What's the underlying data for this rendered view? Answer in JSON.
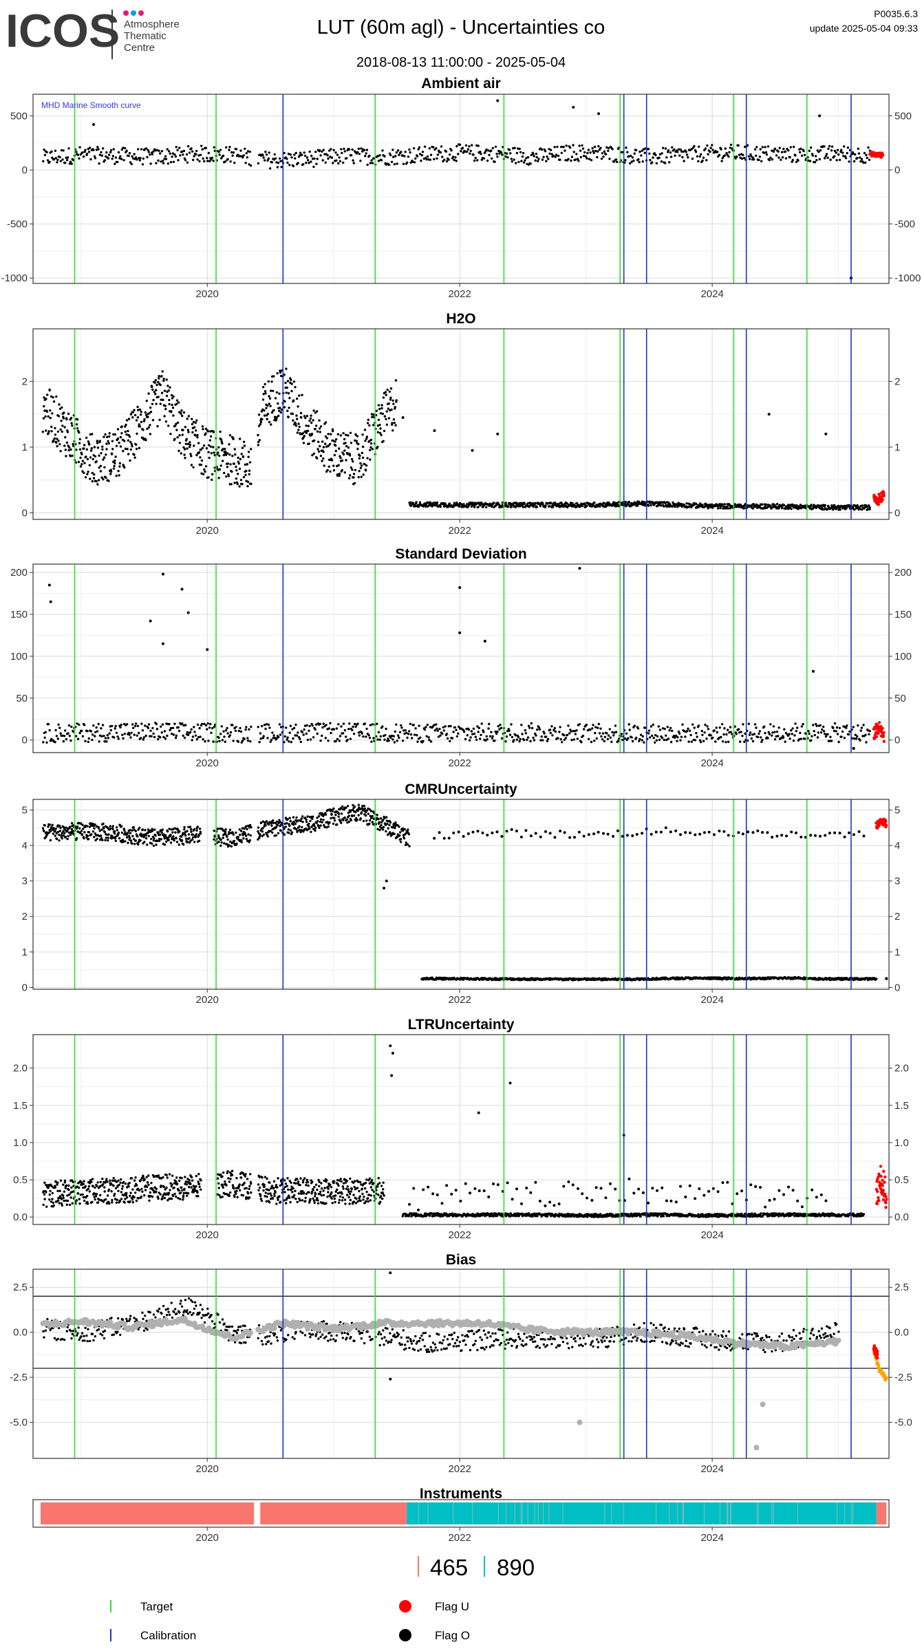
{
  "header": {
    "logo_text": "ICOS",
    "logo_org_line1": "Atmosphere",
    "logo_org_line2": "Thematic",
    "logo_org_line3": "Centre",
    "title": "LUT  (60m agl) - Uncertainties co",
    "date_range": "2018-08-13 11:00:00 - 2025-05-04",
    "code": "P0035.6.3",
    "update": "update  2025-05-04 09:33"
  },
  "colors": {
    "target_line": "#33dd33",
    "calibration_line": "#1a33cc",
    "flag_U": "#ff0000",
    "flag_O": "#000000",
    "smooth_curve": "#b0b0b0",
    "bias_extra": "#ffa500",
    "instrument_465": "#f8766d",
    "instrument_890": "#00bfc4",
    "annotation": "#3333ff"
  },
  "chart_data": [
    {
      "panel": "ambient_air",
      "type": "scatter",
      "title": "Ambient air",
      "annotation": "MHD Marine Smooth curve",
      "xlim": [
        2018.62,
        2025.4
      ],
      "ylim": [
        -1050,
        700
      ],
      "yticks": [
        "500",
        "0",
        "-500",
        "-1000"
      ],
      "ytick_values": [
        500,
        0,
        -500,
        -1000
      ],
      "xticks": [
        "2020",
        "2022",
        "2024"
      ],
      "xtick_values": [
        2020,
        2022,
        2024
      ],
      "target_lines": [
        2018.95,
        2020.07,
        2021.33,
        2022.35,
        2023.27,
        2024.17,
        2024.75
      ],
      "calibration_lines": [
        2020.6,
        2023.3,
        2023.48,
        2024.27,
        2025.1
      ],
      "gaps": [
        [
          2020.35,
          2020.4
        ]
      ],
      "series": [
        {
          "x": [
            2018.7,
            2019.0,
            2019.3,
            2019.6,
            2019.9,
            2020.2,
            2020.5,
            2020.8,
            2021.1,
            2021.4,
            2021.7,
            2022.0,
            2022.3,
            2022.6,
            2022.9,
            2023.2,
            2023.5,
            2023.8,
            2024.1,
            2024.4,
            2024.7,
            2025.0,
            2025.25
          ],
          "y": [
            110,
            140,
            130,
            120,
            150,
            140,
            90,
            100,
            130,
            120,
            140,
            160,
            150,
            120,
            160,
            150,
            120,
            140,
            160,
            150,
            140,
            150,
            140
          ],
          "spread": 110
        },
        {
          "x": [
            2025.25,
            2025.3,
            2025.35
          ],
          "y": [
            150,
            140,
            135
          ],
          "spread": 30,
          "flag": "U"
        }
      ],
      "spikes": [
        [
          2022.3,
          640
        ],
        [
          2022.9,
          580
        ],
        [
          2023.1,
          520
        ],
        [
          2024.85,
          500
        ],
        [
          2019.1,
          420
        ]
      ],
      "outliers": [
        [
          2025.1,
          -1000
        ]
      ]
    },
    {
      "panel": "h2o",
      "type": "scatter",
      "title": "H2O",
      "xlim": [
        2018.62,
        2025.4
      ],
      "ylim": [
        -0.1,
        2.8
      ],
      "yticks": [
        "2",
        "1",
        "0"
      ],
      "ytick_values": [
        2,
        1,
        0
      ],
      "xticks": [
        "2020",
        "2022",
        "2024"
      ],
      "xtick_values": [
        2020,
        2022,
        2024
      ],
      "target_lines": [
        2018.95,
        2020.07,
        2021.33,
        2022.35,
        2023.27,
        2024.17,
        2024.75
      ],
      "calibration_lines": [
        2020.6,
        2023.3,
        2023.48,
        2024.27,
        2025.1
      ],
      "gaps": [
        [
          2020.35,
          2020.4
        ]
      ],
      "series": [
        {
          "x": [
            2018.7,
            2018.9,
            2019.1,
            2019.3,
            2019.5,
            2019.65,
            2019.8,
            2020.0,
            2020.2,
            2020.35,
            2020.45,
            2020.6,
            2020.8,
            2021.0,
            2021.2,
            2021.35,
            2021.5
          ],
          "y": [
            1.6,
            1.2,
            0.8,
            0.9,
            1.4,
            1.8,
            1.2,
            0.9,
            0.8,
            0.7,
            1.6,
            1.9,
            1.3,
            0.9,
            0.8,
            1.3,
            1.7
          ],
          "spread": 0.55
        },
        {
          "x": [
            2021.6,
            2022.0,
            2022.5,
            2023.0,
            2023.5,
            2024.0,
            2024.5,
            2025.0,
            2025.25
          ],
          "y": [
            0.13,
            0.12,
            0.12,
            0.12,
            0.14,
            0.1,
            0.1,
            0.08,
            0.08
          ],
          "spread": 0.05
        },
        {
          "x": [
            2025.28,
            2025.32,
            2025.36
          ],
          "y": [
            0.25,
            0.2,
            0.3
          ],
          "spread": 0.12,
          "flag": "U"
        }
      ],
      "spikes": [
        [
          2021.8,
          1.25
        ],
        [
          2022.1,
          0.95
        ],
        [
          2022.3,
          1.2
        ],
        [
          2024.45,
          1.5
        ],
        [
          2024.9,
          1.2
        ],
        [
          2021.55,
          1.45
        ]
      ],
      "outliers": []
    },
    {
      "panel": "standard_deviation",
      "type": "scatter",
      "title": "Standard Deviation",
      "xlim": [
        2018.62,
        2025.4
      ],
      "ylim": [
        -15,
        210
      ],
      "yticks": [
        "200",
        "150",
        "100",
        "50",
        "0"
      ],
      "ytick_values": [
        200,
        150,
        100,
        50,
        0
      ],
      "xticks": [
        "2020",
        "2022",
        "2024"
      ],
      "xtick_values": [
        2020,
        2022,
        2024
      ],
      "target_lines": [
        2018.95,
        2020.07,
        2021.33,
        2022.35,
        2023.27,
        2024.17,
        2024.75
      ],
      "calibration_lines": [
        2020.6,
        2023.3,
        2023.48,
        2024.27,
        2025.1
      ],
      "gaps": [
        [
          2020.35,
          2020.4
        ]
      ],
      "series": [
        {
          "x": [
            2018.7,
            2019.5,
            2020.3,
            2021.0,
            2021.8,
            2022.5,
            2023.2,
            2024.0,
            2024.8,
            2025.25
          ],
          "y": [
            8,
            10,
            8,
            9,
            8,
            9,
            8,
            8,
            9,
            8
          ],
          "spread": 16
        },
        {
          "x": [
            2025.28,
            2025.32,
            2025.36
          ],
          "y": [
            8,
            15,
            6
          ],
          "spread": 12,
          "flag": "U"
        }
      ],
      "spikes": [
        [
          2018.75,
          185
        ],
        [
          2018.76,
          165
        ],
        [
          2019.65,
          198
        ],
        [
          2019.8,
          180
        ],
        [
          2019.55,
          142
        ],
        [
          2019.85,
          152
        ],
        [
          2022.0,
          182
        ],
        [
          2022.95,
          205
        ],
        [
          2022.0,
          128
        ],
        [
          2022.2,
          118
        ],
        [
          2019.65,
          115
        ],
        [
          2024.8,
          82
        ],
        [
          2020.0,
          108
        ]
      ],
      "outliers": [
        [
          2025.12,
          -10
        ]
      ]
    },
    {
      "panel": "cmr_uncertainty",
      "type": "scatter",
      "title": "CMRUncertainty",
      "xlim": [
        2018.62,
        2025.4
      ],
      "ylim": [
        -0.05,
        5.3
      ],
      "yticks": [
        "5",
        "4",
        "3",
        "2",
        "1",
        "0"
      ],
      "ytick_values": [
        5,
        4,
        3,
        2,
        1,
        0
      ],
      "xticks": [
        "2020",
        "2022",
        "2024"
      ],
      "xtick_values": [
        2020,
        2022,
        2024
      ],
      "target_lines": [
        2018.95,
        2020.07,
        2021.33,
        2022.35,
        2023.27,
        2024.17,
        2024.75
      ],
      "calibration_lines": [
        2020.6,
        2023.3,
        2023.48,
        2024.27,
        2025.1
      ],
      "gaps": [
        [
          2019.95,
          2020.05
        ],
        [
          2020.35,
          2020.4
        ]
      ],
      "series": [
        {
          "x": [
            2018.7,
            2019.0,
            2019.3,
            2019.6,
            2019.9,
            2020.2,
            2020.5,
            2020.8,
            2021.0,
            2021.2,
            2021.4,
            2021.6
          ],
          "y": [
            4.35,
            4.4,
            4.35,
            4.2,
            4.3,
            4.2,
            4.5,
            4.6,
            4.8,
            4.95,
            4.6,
            4.2
          ],
          "spread": 0.35
        },
        {
          "x": [
            2021.7,
            2022.2,
            2022.8,
            2023.3,
            2023.8,
            2024.3,
            2024.7,
            2024.78,
            2025.3
          ],
          "y": [
            0.25,
            0.24,
            0.23,
            0.23,
            0.26,
            0.25,
            0.27,
            0.24,
            0.24
          ],
          "spread": 0.04
        },
        {
          "x": [
            2021.8,
            2022.4,
            2023.0,
            2023.6,
            2024.2,
            2024.8,
            2025.2
          ],
          "y": [
            4.3,
            4.35,
            4.3,
            4.4,
            4.35,
            4.3,
            4.3
          ],
          "spread": 0.15,
          "sparse": true
        },
        {
          "x": [
            2025.3,
            2025.34,
            2025.38
          ],
          "y": [
            4.55,
            4.7,
            4.6
          ],
          "spread": 0.15,
          "flag": "U"
        }
      ],
      "spikes": [
        [
          2021.4,
          2.8
        ],
        [
          2021.42,
          3.0
        ]
      ],
      "outliers": [
        [
          2025.38,
          0.25
        ]
      ]
    },
    {
      "panel": "ltr_uncertainty",
      "type": "scatter",
      "title": "LTRUncertainty",
      "xlim": [
        2018.62,
        2025.4
      ],
      "ylim": [
        -0.1,
        2.45
      ],
      "yticks": [
        "2.0",
        "1.5",
        "1.0",
        "0.5",
        "0.0"
      ],
      "ytick_values": [
        2.0,
        1.5,
        1.0,
        0.5,
        0.0
      ],
      "xticks": [
        "2020",
        "2022",
        "2024"
      ],
      "xtick_values": [
        2020,
        2022,
        2024
      ],
      "target_lines": [
        2018.95,
        2020.07,
        2021.33,
        2022.35,
        2023.27,
        2024.17,
        2024.75
      ],
      "calibration_lines": [
        2020.6,
        2023.3,
        2023.48,
        2024.27,
        2025.1
      ],
      "gaps": [
        [
          2019.95,
          2020.08
        ],
        [
          2020.35,
          2020.4
        ]
      ],
      "series": [
        {
          "x": [
            2018.7,
            2019.0,
            2019.3,
            2019.6,
            2019.9,
            2020.2,
            2020.5,
            2020.8,
            2021.1,
            2021.4
          ],
          "y": [
            0.3,
            0.35,
            0.35,
            0.4,
            0.4,
            0.45,
            0.35,
            0.35,
            0.35,
            0.35
          ],
          "spread": 0.25
        },
        {
          "x": [
            2021.55,
            2022.0,
            2022.5,
            2023.0,
            2023.5,
            2024.0,
            2024.5,
            2025.2
          ],
          "y": [
            0.03,
            0.03,
            0.03,
            0.02,
            0.03,
            0.02,
            0.03,
            0.03
          ],
          "spread": 0.03
        },
        {
          "x": [
            2021.6,
            2022.2,
            2022.9,
            2023.5,
            2024.2,
            2024.9
          ],
          "y": [
            0.25,
            0.3,
            0.3,
            0.35,
            0.3,
            0.25
          ],
          "spread": 0.25,
          "sparse": true
        },
        {
          "x": [
            2025.3,
            2025.34,
            2025.38
          ],
          "y": [
            0.3,
            0.5,
            0.3
          ],
          "spread": 0.3,
          "flag": "U"
        }
      ],
      "spikes": [
        [
          2021.45,
          2.3
        ],
        [
          2021.47,
          2.2
        ],
        [
          2021.46,
          1.9
        ],
        [
          2022.4,
          1.8
        ],
        [
          2022.15,
          1.4
        ],
        [
          2023.3,
          1.1
        ]
      ],
      "outliers": []
    },
    {
      "panel": "bias",
      "type": "scatter",
      "title": "Bias",
      "xlim": [
        2018.62,
        2025.4
      ],
      "ylim": [
        -7.0,
        3.5
      ],
      "yticks": [
        "2.5",
        "0.0",
        "-2.5",
        "-5.0"
      ],
      "ytick_values": [
        2.5,
        0.0,
        -2.5,
        -5.0
      ],
      "hlines": [
        2,
        -2
      ],
      "xticks": [
        "2020",
        "2022",
        "2024"
      ],
      "xtick_values": [
        2020,
        2022,
        2024
      ],
      "target_lines": [
        2018.95,
        2020.07,
        2021.33,
        2022.35,
        2023.27,
        2024.17,
        2024.75
      ],
      "calibration_lines": [
        2020.6,
        2023.3,
        2023.48,
        2024.27,
        2025.1
      ],
      "gaps": [
        [
          2020.35,
          2020.4
        ]
      ],
      "series": [
        {
          "x": [
            2018.7,
            2019.0,
            2019.3,
            2019.6,
            2019.9,
            2020.2,
            2020.5,
            2020.8,
            2021.1,
            2021.4,
            2021.7,
            2022.0,
            2022.5,
            2023.0,
            2023.5,
            2024.0,
            2024.5,
            2025.0
          ],
          "y": [
            0.2,
            0.0,
            0.3,
            0.8,
            1.5,
            -0.2,
            -0.1,
            0.1,
            0.0,
            -0.2,
            -0.6,
            -0.5,
            -0.3,
            -0.4,
            0.0,
            -0.4,
            -0.6,
            0.0
          ],
          "spread": 0.8
        },
        {
          "x": [
            2018.7,
            2019.0,
            2019.4,
            2019.8,
            2020.2,
            2020.6,
            2021.0,
            2021.4,
            2021.8,
            2022.2,
            2022.6,
            2023.0,
            2023.4,
            2023.8,
            2024.2,
            2024.6,
            2025.0
          ],
          "y": [
            0.4,
            0.6,
            0.3,
            0.7,
            -0.3,
            0.5,
            0.2,
            0.5,
            0.5,
            0.5,
            0.1,
            0.0,
            0.0,
            -0.2,
            -0.6,
            -0.8,
            -0.5
          ],
          "spread": 0.3,
          "smooth": true
        },
        {
          "x": [
            2025.28,
            2025.32,
            2025.38
          ],
          "y": [
            -1.0,
            -2.0,
            -2.6
          ],
          "spread": 0.2,
          "extra": true
        },
        {
          "x": [
            2025.28,
            2025.31
          ],
          "y": [
            -0.9,
            -1.3
          ],
          "spread": 0.3,
          "flag": "U"
        }
      ],
      "spikes": [
        [
          2021.45,
          3.3
        ],
        [
          2022.95,
          -5.0
        ],
        [
          2024.4,
          -4.0
        ],
        [
          2024.35,
          -6.4
        ],
        [
          2021.45,
          -2.6
        ]
      ],
      "outliers": []
    }
  ],
  "instruments": {
    "title": "Instruments",
    "xticks": [
      "2020",
      "2022",
      "2024"
    ],
    "xtick_values": [
      2020,
      2022,
      2024
    ],
    "xlim": [
      2018.62,
      2025.4
    ],
    "segments": [
      {
        "from": 2018.68,
        "to": 2020.37,
        "instrument": "465"
      },
      {
        "from": 2020.42,
        "to": 2021.58,
        "instrument": "465"
      },
      {
        "from": 2021.58,
        "to": 2025.3,
        "instrument": "890"
      },
      {
        "from": 2025.3,
        "to": 2025.38,
        "instrument": "465"
      }
    ],
    "legend": [
      "465",
      "890"
    ]
  },
  "legend": {
    "target": "Target",
    "calibration": "Calibration",
    "flag_u": "Flag U",
    "flag_o": "Flag O"
  }
}
